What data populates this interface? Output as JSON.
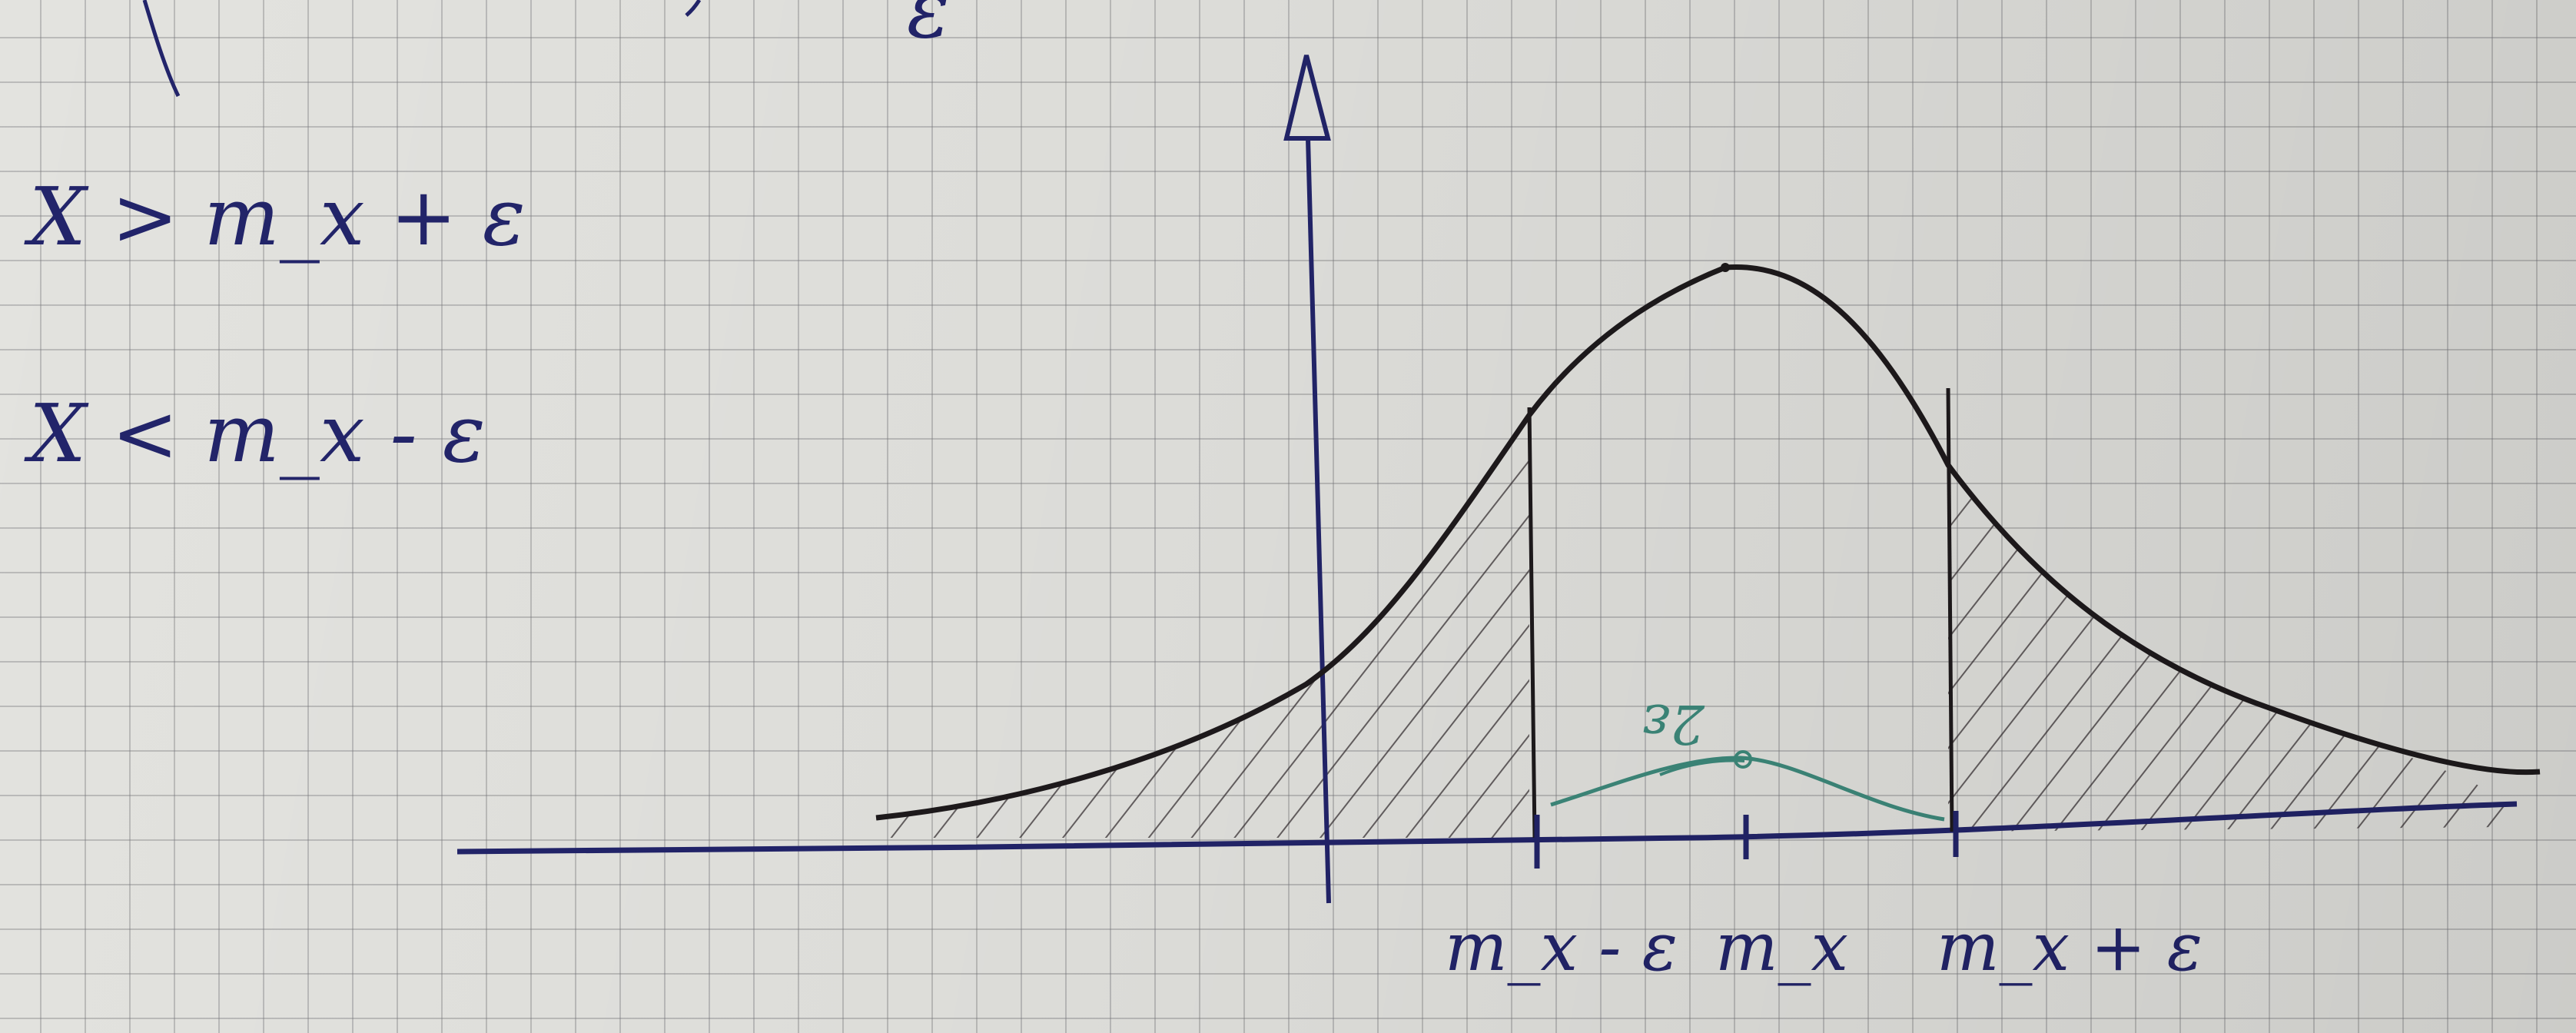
{
  "notes": {
    "line1": "X > m_x + ε",
    "line2": "X < m_x - ε",
    "top_fragment": "ε"
  },
  "axis_labels": {
    "left": "m_x - ε",
    "center": "m_x",
    "right": "m_x + ε"
  },
  "green_label": "2ε",
  "colors": {
    "ink_blue": "#22246a",
    "ink_black": "#1e1a1c",
    "ink_green": "#3e8a7c",
    "hatch": "#3a3336",
    "paper": "#e3e3df"
  }
}
